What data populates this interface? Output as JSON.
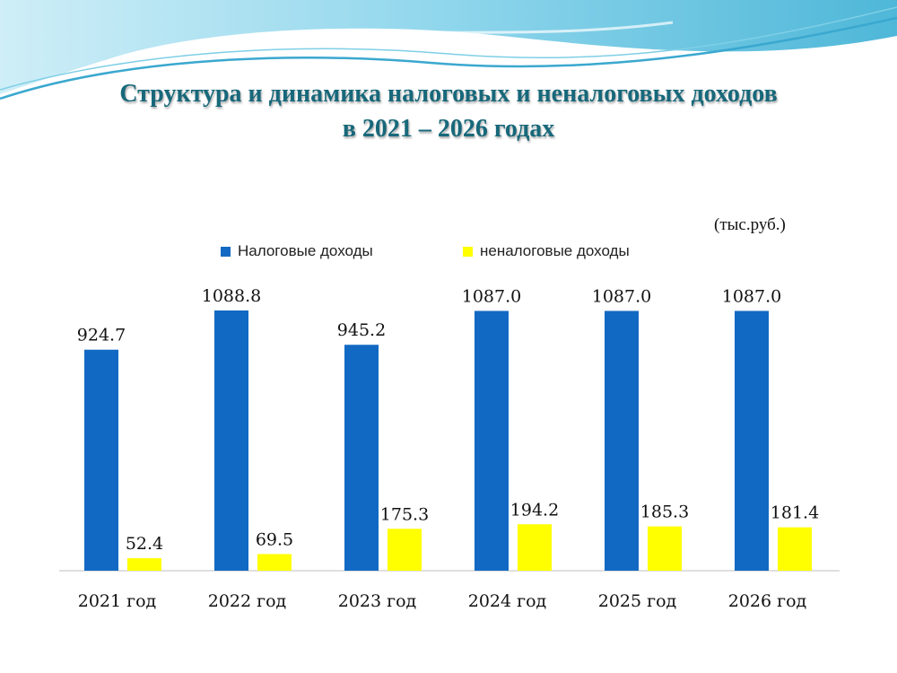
{
  "title_line1": "Структура и динамика налоговых и неналоговых доходов",
  "title_line2": "в 2021 – 2026 годах",
  "unit_label": "(тыс.руб.)",
  "colors": {
    "tax": "#1269c3",
    "nontax": "#ffff00",
    "title": "#17687a"
  },
  "chart_data": {
    "type": "bar",
    "title": "Структура и динамика налоговых и неналоговых доходов в 2021 – 2026 годах",
    "xlabel": "",
    "ylabel": "",
    "ylim": [
      0,
      1200
    ],
    "grid": false,
    "legend_position": "top",
    "categories": [
      "2021 год",
      "2022 год",
      "2023 год",
      "2024 год",
      "2025 год",
      "2026 год"
    ],
    "series": [
      {
        "name": "Налоговые доходы",
        "values": [
          924.7,
          1088.8,
          945.2,
          1087.0,
          1087.0,
          1087.0
        ]
      },
      {
        "name": "неналоговые доходы",
        "values": [
          52.4,
          69.5,
          175.3,
          194.2,
          185.3,
          181.4
        ]
      }
    ]
  }
}
